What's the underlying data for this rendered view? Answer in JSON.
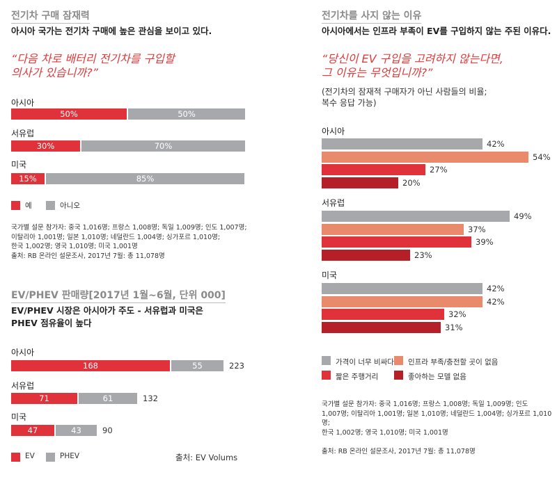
{
  "colors": {
    "red": "#e0323a",
    "grey": "#a7a8ab",
    "salmon": "#ea8a6c",
    "darkred": "#b51f27"
  },
  "panel1": {
    "title": "전기차 구매 잠재력",
    "subtitle": "아시아 국가는 전기차 구매에 높은 관심을 보이고 있다.",
    "question": [
      "“다음 차로 배터리 전기차를 구입할",
      " 의사가 있습니까?”"
    ],
    "legend": [
      "예",
      "아니오"
    ],
    "notes": [
      "국가별 설문 참가자: 중국 1,016명; 프랑스 1,008명; 독일 1,009명; 인도 1,007명;",
      "이탈리아 1,001명; 일본 1,010명; 네덜란드 1,004명; 싱가포르 1,010명;",
      "한국 1,002명; 영국 1,010명; 미국 1,001명",
      "출처: RB 온라인 설문조사, 2017년 7월: 총 11,078명"
    ]
  },
  "panel2": {
    "title": "EV/PHEV 판매량[2017년 1월~6월, 단위 000]",
    "subtitle": [
      "EV/PHEV 시장은 아시아가 주도 - 서유럽과 미국은",
      "PHEV 점유율이 높다"
    ],
    "legend": [
      "EV",
      "PHEV"
    ],
    "source": "출처: EV Volums"
  },
  "panel3": {
    "title": "전기차를 사지 않는 이유",
    "subtitle": "아시아에서는 인프라 부족이 EV를 구입하지 않는 주된 이유다.",
    "question": [
      "“당신이 EV 구입을 고려하지 않는다면,",
      " 그 이유는 무엇입니까?”"
    ],
    "note": [
      "(전기차의 잠재적 구매자가 아닌 사람들의 비율;",
      " 복수 응답 가능)"
    ],
    "legend": [
      "가격이 너무 비싸다",
      "인프라 부족/충전할 곳이 없음",
      "짧은 주행거리",
      "좋아하는 모델 없음"
    ],
    "notes": [
      "국가별 설문 참가자: 중국 1,016명; 프랑스 1,008명; 독일 1,009명; 인도",
      "1,007명; 이탈리아 1,001명; 일본 1,010명; 네덜란드 1,004명; 싱가포르 1,010명;",
      "한국 1,002명; 영국 1,010명; 미국 1,001명"
    ],
    "source": "출처: RB 온라인 설문조사, 2017년 7월: 총 11,078명"
  },
  "chart_data": [
    {
      "type": "bar",
      "stacked": true,
      "title": "전기차 구매 잠재력",
      "categories": [
        "아시아",
        "서유럽",
        "미국"
      ],
      "series": [
        {
          "name": "예",
          "values": [
            50,
            30,
            15
          ],
          "labels": [
            "50%",
            "30%",
            "15%"
          ]
        },
        {
          "name": "아니오",
          "values": [
            50,
            70,
            85
          ],
          "labels": [
            "50%",
            "70%",
            "85%"
          ]
        }
      ]
    },
    {
      "type": "bar",
      "stacked": true,
      "title": "EV/PHEV 판매량[2017년 1월~6월, 단위 000]",
      "categories": [
        "아시아",
        "서유럽",
        "미국"
      ],
      "series": [
        {
          "name": "EV",
          "values": [
            168,
            71,
            47
          ],
          "labels": [
            "168",
            "71",
            "47"
          ]
        },
        {
          "name": "PHEV",
          "values": [
            55,
            61,
            43
          ],
          "labels": [
            "55",
            "61",
            "43"
          ]
        }
      ],
      "totals": [
        "223",
        "132",
        "90"
      ]
    },
    {
      "type": "bar",
      "title": "전기차를 사지 않는 이유",
      "categories": [
        "아시아",
        "서유럽",
        "미국"
      ],
      "series": [
        {
          "name": "가격이 너무 비싸다",
          "values": [
            42,
            49,
            42
          ],
          "labels": [
            "42%",
            "49%",
            "42%"
          ]
        },
        {
          "name": "인프라 부족/충전할 곳이 없음",
          "values": [
            54,
            37,
            42
          ],
          "labels": [
            "54%",
            "37%",
            "42%"
          ]
        },
        {
          "name": "짧은 주행거리",
          "values": [
            27,
            39,
            32
          ],
          "labels": [
            "27%",
            "39%",
            "32%"
          ]
        },
        {
          "name": "좋아하는 모델 없음",
          "values": [
            20,
            23,
            31
          ],
          "labels": [
            "20%",
            "23%",
            "31%"
          ]
        }
      ]
    }
  ]
}
